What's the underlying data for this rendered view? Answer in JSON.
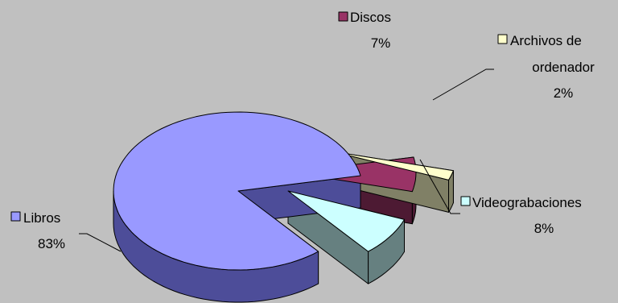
{
  "chart_data": {
    "type": "pie",
    "style": "3d-exploded",
    "categories": [
      "Libros",
      "Discos",
      "Archivos de ordenador",
      "Videograbaciones"
    ],
    "values": [
      83,
      7,
      2,
      8
    ],
    "labels": [
      {
        "name_lines": [
          "Libros"
        ],
        "value_text": "83%"
      },
      {
        "name_lines": [
          "Discos"
        ],
        "value_text": "7%"
      },
      {
        "name_lines": [
          "Archivos de",
          "ordenador"
        ],
        "value_text": "2%"
      },
      {
        "name_lines": [
          "Videograbaciones"
        ],
        "value_text": "8%"
      }
    ],
    "colors": {
      "Libros": {
        "top": "#9999ff",
        "side": "#4d4d99"
      },
      "Discos": {
        "top": "#993366",
        "side": "#4d1a33"
      },
      "Archivos de ordenador": {
        "top": "#ffffcc",
        "side": "#808066"
      },
      "Videograbaciones": {
        "top": "#ccffff",
        "side": "#668080"
      }
    },
    "background": "#c0c0c0",
    "legend": "none",
    "title": ""
  }
}
